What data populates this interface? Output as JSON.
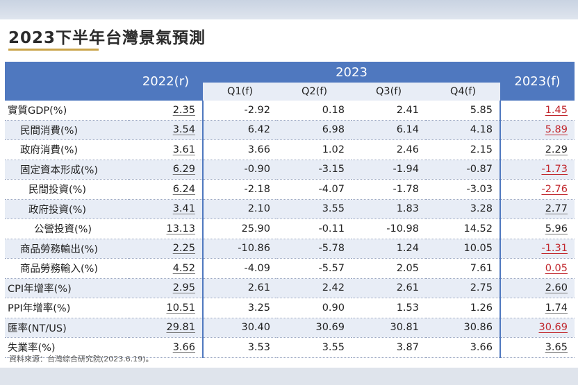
{
  "title": "2023下半年台灣景氣預測",
  "header": {
    "col_2022": "2022(r)",
    "year_2023": "2023",
    "quarters": [
      "Q1(f)",
      "Q2(f)",
      "Q3(f)",
      "Q4(f)"
    ],
    "col_2023f": "2023(f)"
  },
  "rows": [
    {
      "label": "實質GDP(%)",
      "y2022": "2.35",
      "q1": "-2.92",
      "q2": "0.18",
      "q3": "2.41",
      "q4": "5.85",
      "y2023": "1.45"
    },
    {
      "label": "民間消費(%)",
      "y2022": "3.54",
      "q1": "6.42",
      "q2": "6.98",
      "q3": "6.14",
      "q4": "4.18",
      "y2023": "5.89"
    },
    {
      "label": "政府消費(%)",
      "y2022": "3.61",
      "q1": "3.66",
      "q2": "1.02",
      "q3": "2.46",
      "q4": "2.15",
      "y2023": "2.29"
    },
    {
      "label": "固定資本形成(%)",
      "y2022": "6.29",
      "q1": "-0.90",
      "q2": "-3.15",
      "q3": "-1.94",
      "q4": "-0.87",
      "y2023": "-1.73"
    },
    {
      "label": "民間投資(%)",
      "y2022": "6.24",
      "q1": "-2.18",
      "q2": "-4.07",
      "q3": "-1.78",
      "q4": "-3.03",
      "y2023": "-2.76"
    },
    {
      "label": "政府投資(%)",
      "y2022": "3.41",
      "q1": "2.10",
      "q2": "3.55",
      "q3": "1.83",
      "q4": "3.28",
      "y2023": "2.77"
    },
    {
      "label": "公營投資(%)",
      "y2022": "13.13",
      "q1": "25.90",
      "q2": "-0.11",
      "q3": "-10.98",
      "q4": "14.52",
      "y2023": "5.96"
    },
    {
      "label": "商品勞務輸出(%)",
      "y2022": "2.25",
      "q1": "-10.86",
      "q2": "-5.78",
      "q3": "1.24",
      "q4": "10.05",
      "y2023": "-1.31"
    },
    {
      "label": "商品勞務輸入(%)",
      "y2022": "4.52",
      "q1": "-4.09",
      "q2": "-5.57",
      "q3": "2.05",
      "q4": "7.61",
      "y2023": "0.05"
    },
    {
      "label": "CPI年增率(%)",
      "y2022": "2.95",
      "q1": "2.61",
      "q2": "2.42",
      "q3": "2.61",
      "q4": "2.75",
      "y2023": "2.60"
    },
    {
      "label": "PPI年增率(%)",
      "y2022": "10.51",
      "q1": "3.25",
      "q2": "0.90",
      "q3": "1.53",
      "q4": "1.26",
      "y2023": "1.74"
    },
    {
      "label": "匯率(NT/US)",
      "y2022": "29.81",
      "q1": "30.40",
      "q2": "30.69",
      "q3": "30.81",
      "q4": "30.86",
      "y2023": "30.69"
    },
    {
      "label": "失業率(%)",
      "y2022": "3.66",
      "q1": "3.53",
      "q2": "3.55",
      "q3": "3.87",
      "q4": "3.66",
      "y2023": "3.65"
    }
  ],
  "source": "資料來源：台灣綜合研究院(2023.6.19)。",
  "colors": {
    "header_blue": "#4f78bf",
    "stripe": "#e8edf6",
    "highlight_red": "#c1272d",
    "title_underline": "#c9a44a"
  }
}
